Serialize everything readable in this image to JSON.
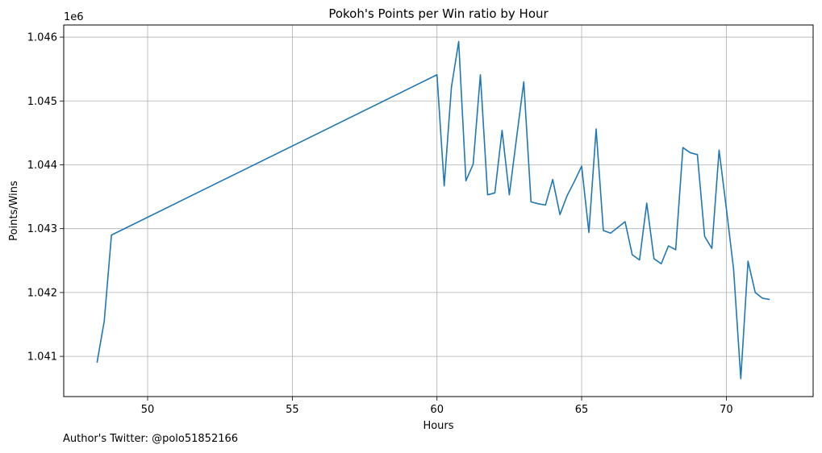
{
  "chart_data": {
    "type": "line",
    "title": "Pokoh's Points per Win ratio by Hour",
    "xlabel": "Hours",
    "ylabel": "Points/Wins",
    "y_offset_label": "1e6",
    "y_scale_factor": 1000000,
    "xlim": [
      47.1,
      73.0
    ],
    "ylim": [
      1040.37,
      1046.19
    ],
    "x_ticks": [
      50,
      55,
      60,
      65,
      70
    ],
    "x_tick_labels": [
      "50",
      "55",
      "60",
      "65",
      "70"
    ],
    "y_ticks": [
      1041,
      1042,
      1043,
      1044,
      1045,
      1046
    ],
    "y_tick_labels": [
      "1.041",
      "1.042",
      "1.043",
      "1.044",
      "1.045",
      "1.046"
    ],
    "grid": true,
    "color": "#1f77b4",
    "series": [
      {
        "x": [
          48.25,
          48.5,
          48.75,
          60.0,
          60.25,
          60.5,
          60.75,
          61.0,
          61.25,
          61.5,
          61.75,
          62.0,
          62.25,
          62.5,
          62.75,
          63.0,
          63.25,
          63.5,
          63.75,
          64.0,
          64.25,
          64.5,
          64.75,
          65.0,
          65.25,
          65.5,
          65.75,
          66.0,
          66.25,
          66.5,
          66.75,
          67.0,
          67.25,
          67.5,
          67.75,
          68.0,
          68.25,
          68.5,
          68.75,
          69.0,
          69.25,
          69.5,
          69.75,
          70.0,
          70.25,
          70.5,
          70.75,
          71.0,
          71.25,
          71.5
        ],
        "values": [
          1040.9,
          1041.55,
          1042.9,
          1045.41,
          1043.67,
          1045.22,
          1045.93,
          1043.75,
          1044.01,
          1045.41,
          1043.53,
          1043.56,
          1044.54,
          1043.53,
          1044.42,
          1045.3,
          1043.42,
          1043.39,
          1043.37,
          1043.77,
          1043.22,
          1043.52,
          1043.74,
          1043.98,
          1042.94,
          1044.56,
          1042.97,
          1042.93,
          1043.02,
          1043.11,
          1042.59,
          1042.51,
          1043.4,
          1042.53,
          1042.45,
          1042.73,
          1042.67,
          1044.27,
          1044.19,
          1044.16,
          1042.88,
          1042.69,
          1044.23,
          1043.32,
          1042.37,
          1040.65,
          1042.49,
          1042.0,
          1041.91,
          1041.89
        ]
      }
    ]
  },
  "footnote": "Author's Twitter: @polo51852166"
}
